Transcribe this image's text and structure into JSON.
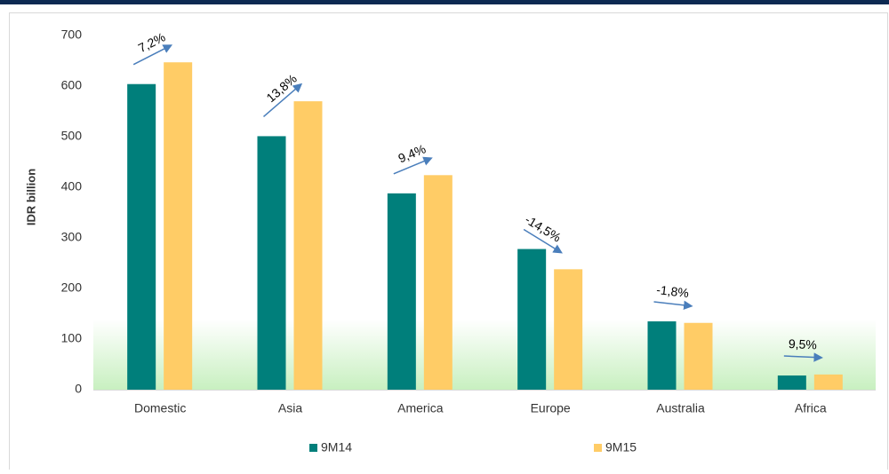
{
  "chart_data": {
    "type": "bar",
    "y_label": "IDR billion",
    "categories": [
      "Domestic",
      "Asia",
      "America",
      "Europe",
      "Australia",
      "Africa"
    ],
    "series": [
      {
        "name": "9M14",
        "color": "#007f7b",
        "values": [
          604,
          501,
          388,
          278,
          135,
          28
        ]
      },
      {
        "name": "9M15",
        "color": "#ffcc66",
        "values": [
          647,
          570,
          424,
          238,
          132,
          30
        ]
      }
    ],
    "annotations": [
      "7,2%",
      "13,8%",
      "9,4%",
      "-14,5%",
      "-1,8%",
      "9,5%"
    ],
    "ylim": [
      0,
      700
    ],
    "yticks": [
      0,
      100,
      200,
      300,
      400,
      500,
      600,
      700
    ],
    "legend": "bottom"
  }
}
